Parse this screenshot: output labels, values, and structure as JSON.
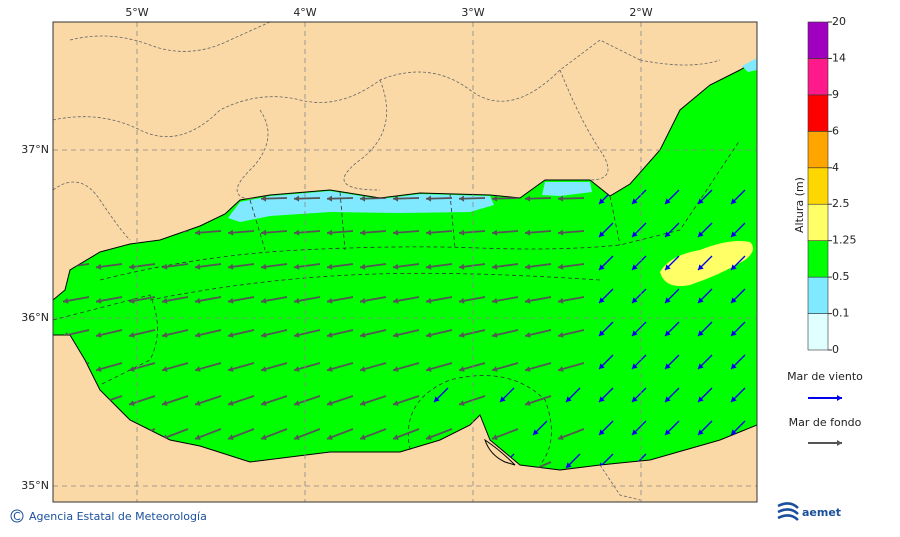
{
  "map": {
    "longitude_labels": [
      "5°W",
      "4°W",
      "3°W",
      "2°W"
    ],
    "latitude_labels": [
      "37°N",
      "36°N",
      "35°N"
    ]
  },
  "legend": {
    "title": "Altura (m)",
    "levels": [
      0,
      0.1,
      0.5,
      1.25,
      2.5,
      4,
      6,
      9,
      14,
      20
    ],
    "colors": [
      "#e0ffff",
      "#80e8ff",
      "#00ff00",
      "#ffff66",
      "#ffd700",
      "#ffa500",
      "#ff0000",
      "#ff1a8c",
      "#a000c0"
    ],
    "wind_sea": "Mar de viento",
    "wind_sea_color": "#0000ee",
    "swell": "Mar de fondo",
    "swell_color": "#555555"
  },
  "footer": {
    "agency": "Agencia Estatal de Meteorología",
    "logo": "aemet"
  }
}
